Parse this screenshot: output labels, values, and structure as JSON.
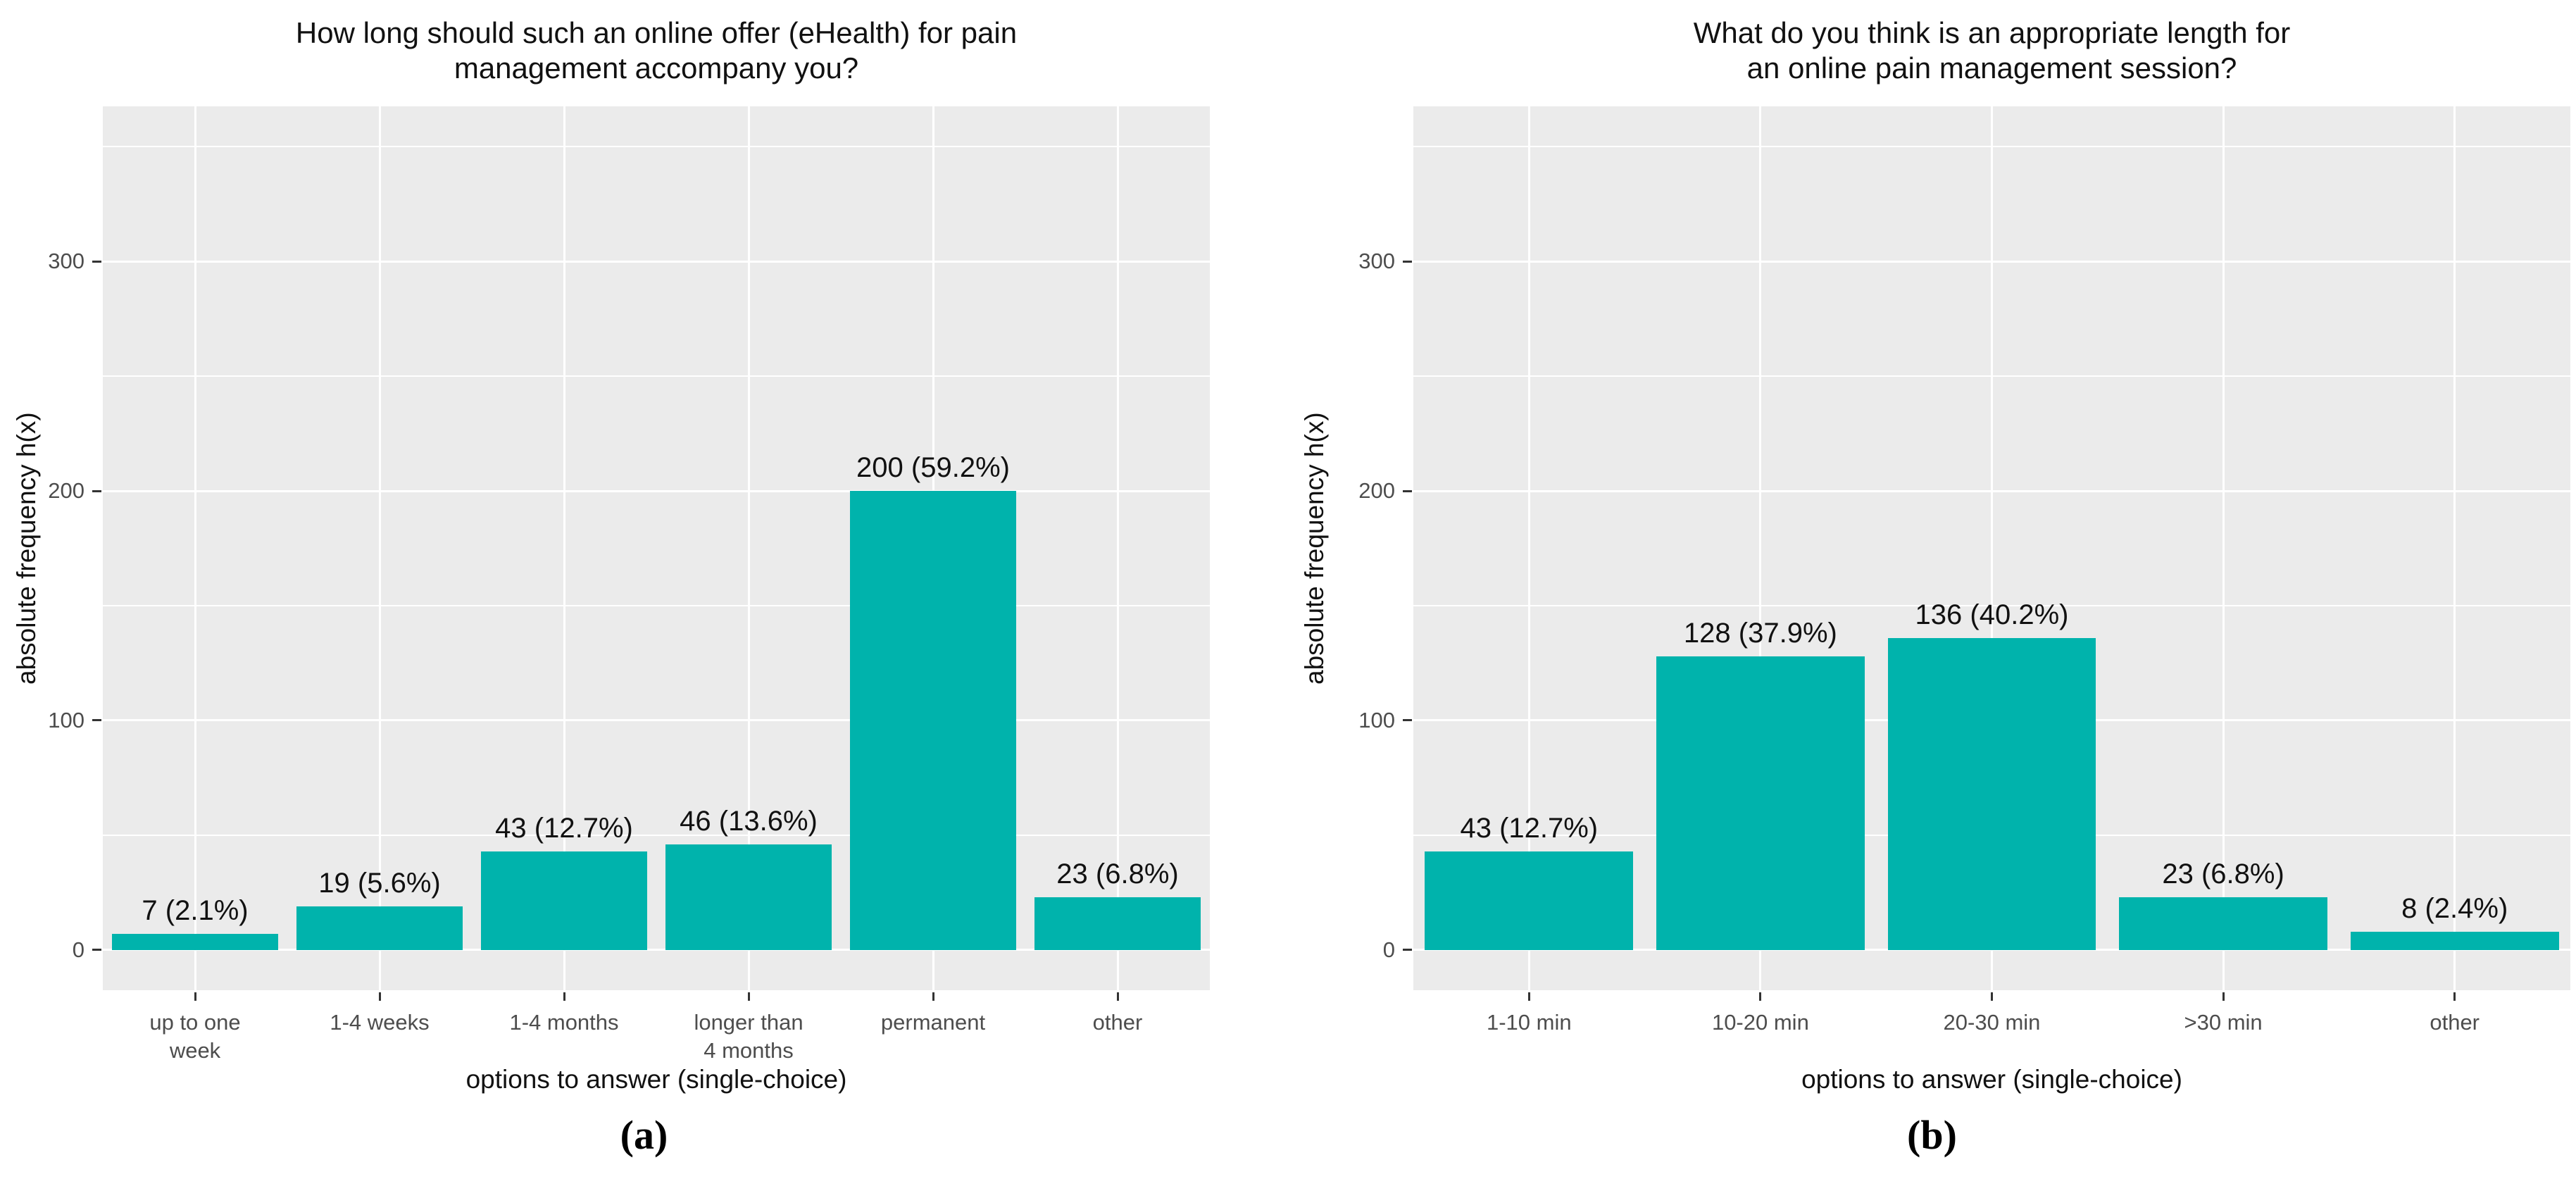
{
  "figure": {
    "background": "#ffffff",
    "panel_background": "#ebebeb",
    "gridline_color": "#ffffff",
    "bar_color": "#00b3ac",
    "tick_text_color": "#4d4d4d",
    "text_color": "#111111"
  },
  "chart_data": [
    {
      "id": "a",
      "type": "bar",
      "title_lines": [
        "How long should such an online offer (eHealth) for pain",
        "management accompany you?"
      ],
      "categories": [
        [
          "up to one",
          "week"
        ],
        [
          "1-4 weeks"
        ],
        [
          "1-4 months"
        ],
        [
          "longer than",
          "4 months"
        ],
        [
          "permanent"
        ],
        [
          "other"
        ]
      ],
      "values": [
        7,
        19,
        43,
        46,
        200,
        23
      ],
      "bar_labels": [
        "7 (2.1%)",
        "19 (5.6%)",
        "43 (12.7%)",
        "46 (13.6%)",
        "200 (59.2%)",
        "23 (6.8%)"
      ],
      "xlabel": "options to answer (single-choice)",
      "ylabel": "absolute frequency h(x)",
      "yticks": [
        0,
        100,
        200,
        300
      ],
      "yticks_minor": [
        50,
        150,
        250,
        350
      ],
      "ylim": [
        -17.5,
        367.5
      ],
      "grid": "on",
      "legend": "none",
      "caption": "(a)",
      "bar_color": "#00b3ac"
    },
    {
      "id": "b",
      "type": "bar",
      "title_lines": [
        "What do you think is an appropriate length for",
        "an online pain management session?"
      ],
      "categories": [
        [
          "1-10 min"
        ],
        [
          "10-20 min"
        ],
        [
          "20-30 min"
        ],
        [
          ">30 min"
        ],
        [
          "other"
        ]
      ],
      "values": [
        43,
        128,
        136,
        23,
        8
      ],
      "bar_labels": [
        "43 (12.7%)",
        "128 (37.9%)",
        "136 (40.2%)",
        "23 (6.8%)",
        "8 (2.4%)"
      ],
      "xlabel": "options to answer (single-choice)",
      "ylabel": "absolute frequency h(x)",
      "yticks": [
        0,
        100,
        200,
        300
      ],
      "yticks_minor": [
        50,
        150,
        250,
        350
      ],
      "ylim": [
        -17.5,
        367.5
      ],
      "grid": "on",
      "legend": "none",
      "caption": "(b)",
      "bar_color": "#00b3ac"
    }
  ]
}
